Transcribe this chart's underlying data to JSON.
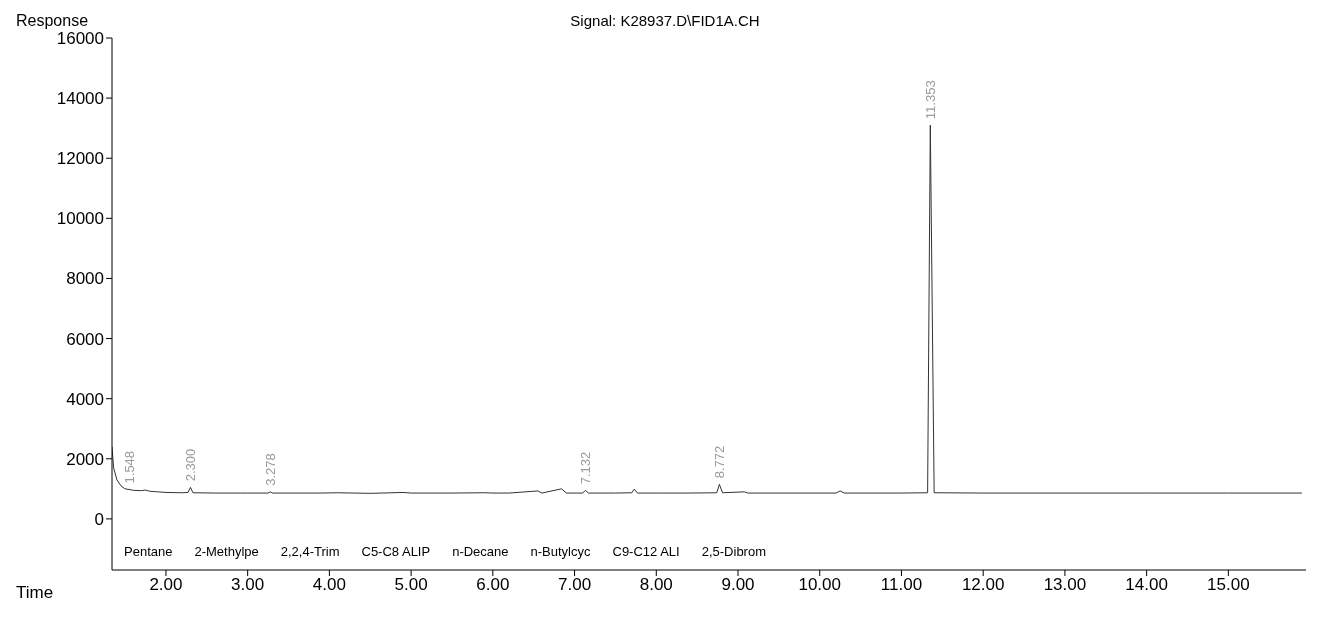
{
  "chart_data": {
    "type": "line",
    "title": "Signal: K28937.D\\FID1A.CH",
    "xlabel": "Time",
    "ylabel": "Response",
    "x": [
      1.34,
      1.36,
      1.4,
      1.45,
      1.5,
      1.548,
      1.6,
      1.7,
      1.75,
      1.8,
      1.9,
      2.0,
      2.2,
      2.27,
      2.3,
      2.33,
      2.6,
      3.0,
      3.25,
      3.278,
      3.3,
      3.7,
      3.9,
      4.1,
      4.5,
      4.9,
      5.0,
      5.5,
      5.9,
      6.0,
      6.2,
      6.55,
      6.6,
      6.84,
      6.9,
      7.1,
      7.132,
      7.17,
      7.5,
      7.7,
      7.73,
      7.77,
      7.8,
      8.0,
      8.4,
      8.74,
      8.772,
      8.81,
      9.08,
      9.12,
      9.5,
      10.2,
      10.25,
      10.3,
      11.0,
      11.32,
      11.353,
      11.4,
      12.0,
      13.0,
      14.0,
      15.0,
      15.9
    ],
    "series": [
      {
        "color": "#333333",
        "values": [
          2400,
          1700,
          1300,
          1100,
          1000,
          980,
          950,
          940,
          960,
          920,
          900,
          880,
          870,
          880,
          1050,
          870,
          860,
          860,
          860,
          900,
          860,
          860,
          860,
          870,
          850,
          880,
          860,
          860,
          870,
          860,
          860,
          930,
          860,
          1000,
          860,
          860,
          950,
          860,
          860,
          870,
          990,
          860,
          860,
          860,
          860,
          870,
          1150,
          870,
          900,
          860,
          860,
          860,
          930,
          860,
          860,
          870,
          13100,
          870,
          860,
          860,
          860,
          860,
          860
        ]
      }
    ],
    "xlim": [
      1.34,
      15.95
    ],
    "ylim": [
      -1700,
      16000
    ],
    "xticks": [
      {
        "value": 2,
        "label": "2.00"
      },
      {
        "value": 3,
        "label": "3.00"
      },
      {
        "value": 4,
        "label": "4.00"
      },
      {
        "value": 5,
        "label": "5.00"
      },
      {
        "value": 6,
        "label": "6.00"
      },
      {
        "value": 7,
        "label": "7.00"
      },
      {
        "value": 8,
        "label": "8.00"
      },
      {
        "value": 9,
        "label": "9.00"
      },
      {
        "value": 10,
        "label": "10.00"
      },
      {
        "value": 11,
        "label": "11.00"
      },
      {
        "value": 12,
        "label": "12.00"
      },
      {
        "value": 13,
        "label": "13.00"
      },
      {
        "value": 14,
        "label": "14.00"
      },
      {
        "value": 15,
        "label": "15.00"
      }
    ],
    "yticks": [
      0,
      2000,
      4000,
      6000,
      8000,
      10000,
      12000,
      14000,
      16000
    ],
    "grid": false,
    "legend": false,
    "marker": "none",
    "line_style": "solid",
    "annotations": [
      {
        "text": "1.548",
        "x": 1.548,
        "y": 980
      },
      {
        "text": "2.300",
        "x": 2.3,
        "y": 1050
      },
      {
        "text": "3.278",
        "x": 3.278,
        "y": 900
      },
      {
        "text": "7.132",
        "x": 7.132,
        "y": 950
      },
      {
        "text": "8.772",
        "x": 8.772,
        "y": 1150
      },
      {
        "text": "11.353",
        "x": 11.353,
        "y": 13100
      },
      "Pentane",
      "2-Methylpe",
      "2,2,4-Trim",
      "C5-C8 ALIP",
      "n-Decane",
      "n-Butylcyc",
      "C9-C12 ALI",
      "2,5-Dibrom"
    ]
  }
}
